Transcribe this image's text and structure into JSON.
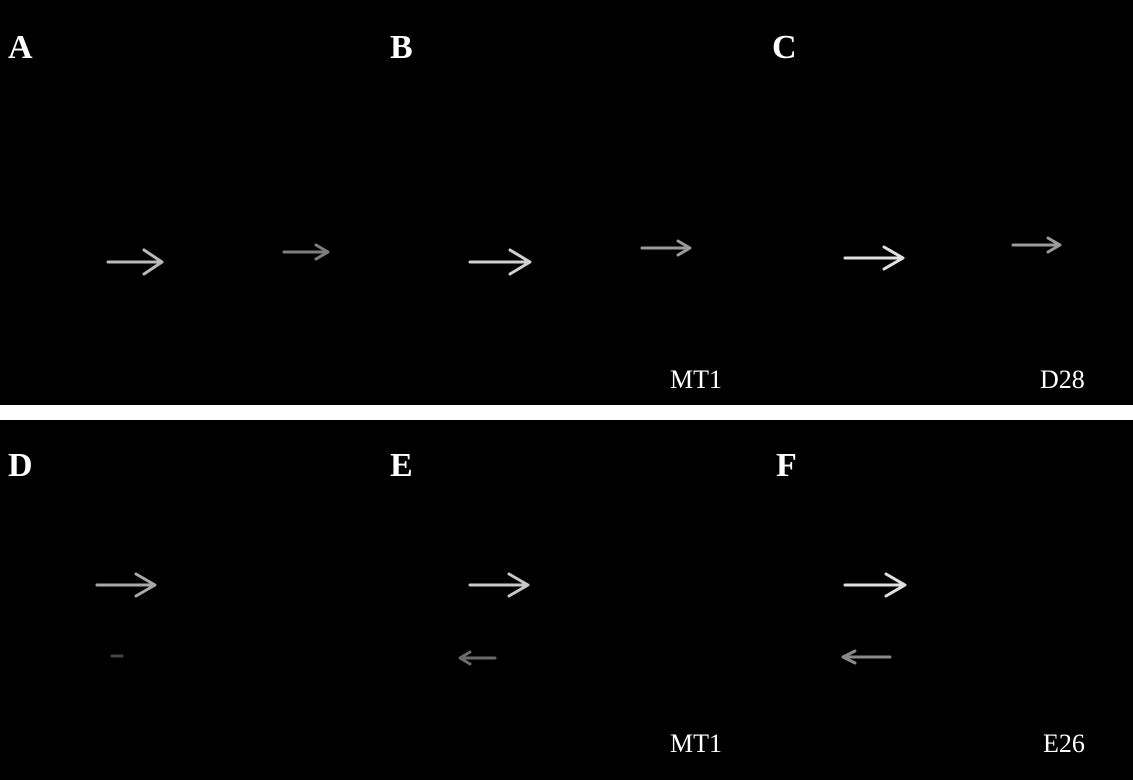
{
  "panels": [
    {
      "labels": [
        "A",
        "B",
        "C"
      ],
      "captions": [
        "MT1",
        "D28"
      ]
    },
    {
      "labels": [
        "D",
        "E",
        "F"
      ],
      "captions": [
        "MT1",
        "E26"
      ]
    }
  ]
}
